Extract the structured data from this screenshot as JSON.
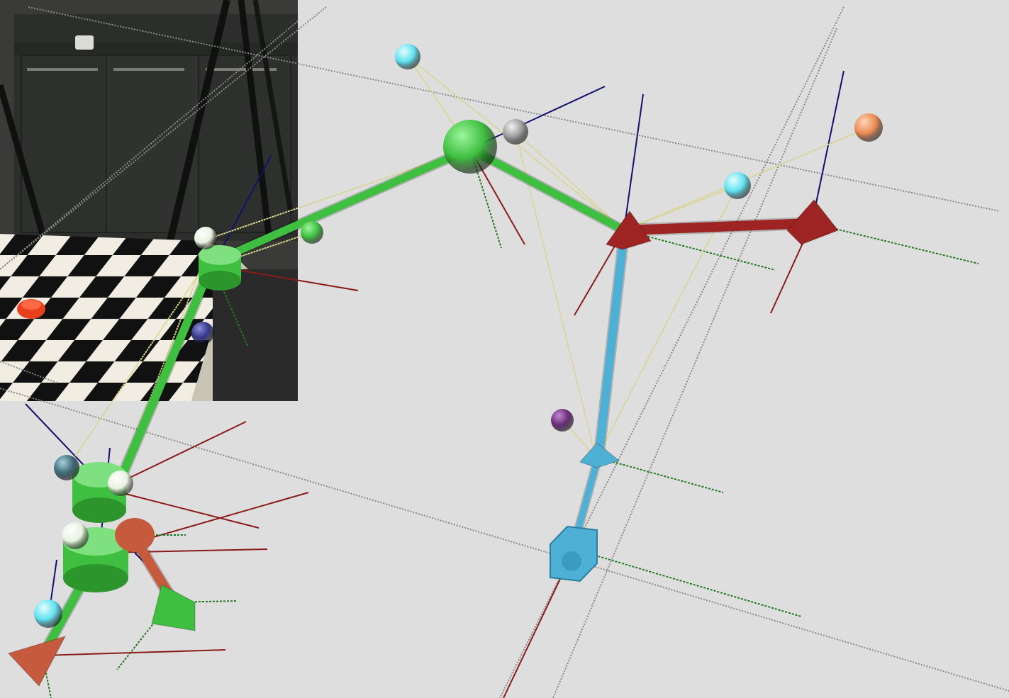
{
  "viewer": {
    "background": "#dedede",
    "content_type": "3d-skeleton-viewer-with-camera-inset",
    "text_visible": false
  },
  "colors": {
    "chain_green": "#3fbf3f",
    "chain_red": "#9e2323",
    "chain_blue": "#4fb0d6",
    "chain_orange": "#c65a3c",
    "axis_red": "#8b1a1a",
    "axis_green": "#1e7a1e",
    "axis_blue": "#10106e",
    "marker_cyan": "#5fe0f0",
    "marker_orange": "#ec8a52",
    "marker_purple": "#6a2d7a",
    "marker_gray": "#9a9a9a",
    "marker_navy": "#34368a",
    "marker_teal": "#3e6a78",
    "marker_white": "#e8f2e0"
  },
  "inset": {
    "description_icon": "camera-frame-inset",
    "icon": "checkerboard-table-photo"
  }
}
